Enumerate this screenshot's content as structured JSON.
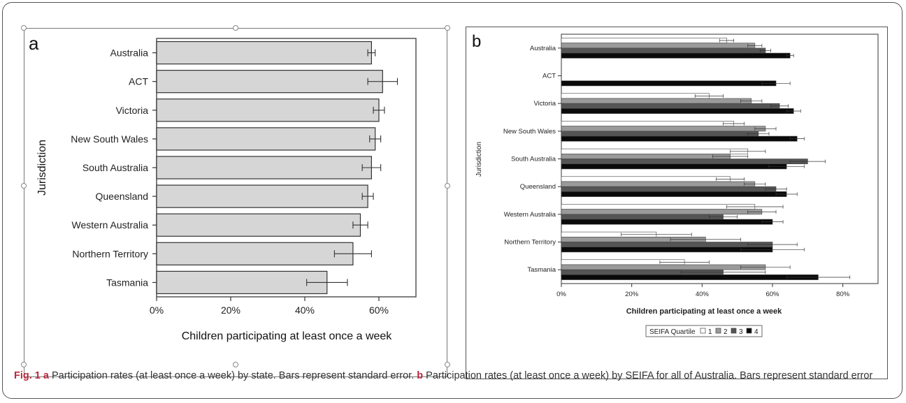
{
  "charts": [
    {
      "type": "bar",
      "panel_letter": "a",
      "ylabel": "Jurisdiction",
      "xlabel": "Children participating at least once a week",
      "xlim": [
        0,
        70
      ],
      "xticks": [
        "0%",
        "20%",
        "40%",
        "60%"
      ],
      "categories": [
        "Australia",
        "ACT",
        "Victoria",
        "New South Wales",
        "South Australia",
        "Queensland",
        "Western Australia",
        "Northern Territory",
        "Tasmania"
      ],
      "values": [
        58,
        61,
        60,
        59,
        58,
        57,
        55,
        53,
        46
      ],
      "errors": [
        1,
        4,
        1.5,
        1.5,
        2.5,
        1.5,
        2,
        5,
        5.5
      ],
      "colors": {
        "bar": "#d6d6d6",
        "stroke": "#333333"
      }
    },
    {
      "type": "bar",
      "panel_letter": "b",
      "ylabel": "Jurisdiction",
      "xlabel": "Children participating at least once a week",
      "xlim": [
        0,
        90
      ],
      "xticks": [
        "0%",
        "20%",
        "40%",
        "60%",
        "80%"
      ],
      "categories": [
        "Australia",
        "ACT",
        "Victoria",
        "New South Wales",
        "South Australia",
        "Queensland",
        "Western Australia",
        "Northern Territory",
        "Tasmania"
      ],
      "legend_title": "SEIFA Quartile",
      "series": [
        {
          "name": "1",
          "color": "#ffffff",
          "values": [
            47,
            null,
            42,
            49,
            53,
            48,
            55,
            27,
            35
          ],
          "errors": [
            2,
            null,
            4,
            3,
            5,
            4,
            8,
            10,
            7
          ]
        },
        {
          "name": "2",
          "color": "#9a9a9a",
          "values": [
            55,
            null,
            54,
            58,
            48,
            55,
            57,
            41,
            58
          ],
          "errors": [
            2,
            null,
            3,
            3,
            5,
            3,
            4,
            10,
            7
          ]
        },
        {
          "name": "3",
          "color": "#555555",
          "values": [
            58,
            null,
            62,
            56,
            70,
            61,
            46,
            60,
            46
          ],
          "errors": [
            1.5,
            null,
            2.5,
            3,
            5,
            3,
            4,
            7,
            12
          ]
        },
        {
          "name": "4",
          "color": "#0a0a0a",
          "values": [
            65,
            61,
            66,
            67,
            64,
            64,
            60,
            60,
            73
          ],
          "errors": [
            1,
            4,
            2,
            2,
            5,
            3,
            3,
            9,
            9
          ]
        }
      ]
    }
  ],
  "caption": {
    "fig_label": "Fig. 1",
    "a_letter": "a",
    "a_text": " Participation rates (at least once a week) by state. Bars represent standard error. ",
    "b_letter": "b",
    "b_text": " Participation rates (at least once a week) by SEIFA for all of Australia. Bars represent standard error"
  }
}
